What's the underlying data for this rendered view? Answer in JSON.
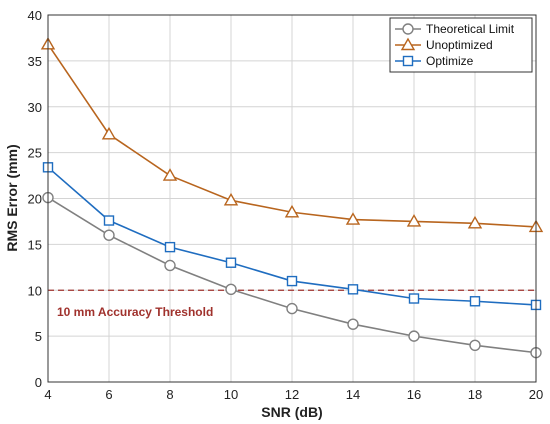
{
  "chart_data": {
    "type": "line",
    "xlabel": "SNR (dB)",
    "ylabel": "RMS Error (mm)",
    "xlim": [
      4,
      20
    ],
    "ylim": [
      0,
      40
    ],
    "xticks": [
      4,
      6,
      8,
      10,
      12,
      14,
      16,
      18,
      20
    ],
    "yticks": [
      0,
      5,
      10,
      15,
      20,
      25,
      30,
      35,
      40
    ],
    "grid": true,
    "legend_position": "top-right",
    "x": [
      4,
      6,
      8,
      10,
      12,
      14,
      16,
      18,
      20
    ],
    "series": [
      {
        "name": "Theoretical Limit",
        "marker": "circle",
        "color": "#808080",
        "values": [
          20.1,
          16.0,
          12.7,
          10.1,
          8.0,
          6.3,
          5.0,
          4.0,
          3.2
        ]
      },
      {
        "name": "Unoptimized",
        "marker": "triangle",
        "color": "#B8651E",
        "values": [
          36.8,
          27.0,
          22.5,
          19.8,
          18.5,
          17.7,
          17.5,
          17.3,
          16.9
        ]
      },
      {
        "name": "Optimize",
        "marker": "square",
        "color": "#1F6DC0",
        "values": [
          23.4,
          17.6,
          14.7,
          13.0,
          11.0,
          10.1,
          9.1,
          8.8,
          8.4
        ]
      }
    ],
    "threshold": {
      "value": 10,
      "label": "10 mm Accuracy Threshold",
      "color": "#A0322D"
    }
  }
}
